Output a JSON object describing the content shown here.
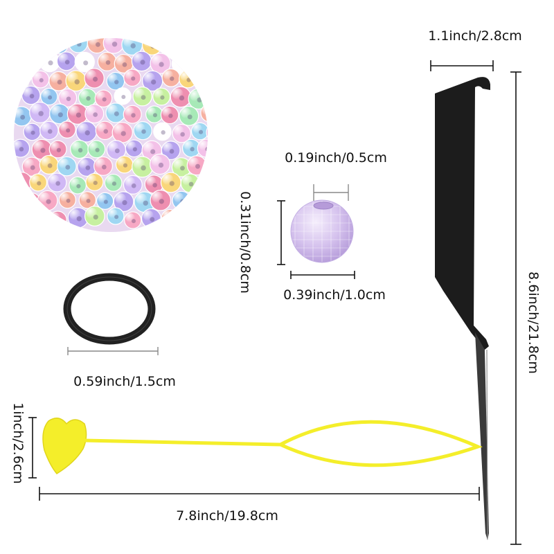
{
  "dimensions": {
    "comb_width": "1.1inch/2.8cm",
    "comb_length": "8.6inch/21.8cm",
    "bead_hole": "0.19inch/0.5cm",
    "bead_height": "0.31inch/0.8cm",
    "bead_width": "0.39inch/1.0cm",
    "band_diameter": "0.59inch/1.5cm",
    "tool_height": "1inch/2.6cm",
    "tool_length": "7.8inch/19.8cm"
  },
  "items": {
    "beads_cluster": "assorted-faceted-beads-photo",
    "single_bead": "lavender-faceted-bead",
    "rubber_band": "black-elastic-band",
    "threader_tool": "yellow-heart-threader",
    "comb": "black-rat-tail-comb"
  },
  "colors": {
    "comb": "#1c1c1c",
    "tool": "#f4ee2a",
    "band": "#222222",
    "bead": "#d6c3ee",
    "dimension_line": "#111111"
  }
}
